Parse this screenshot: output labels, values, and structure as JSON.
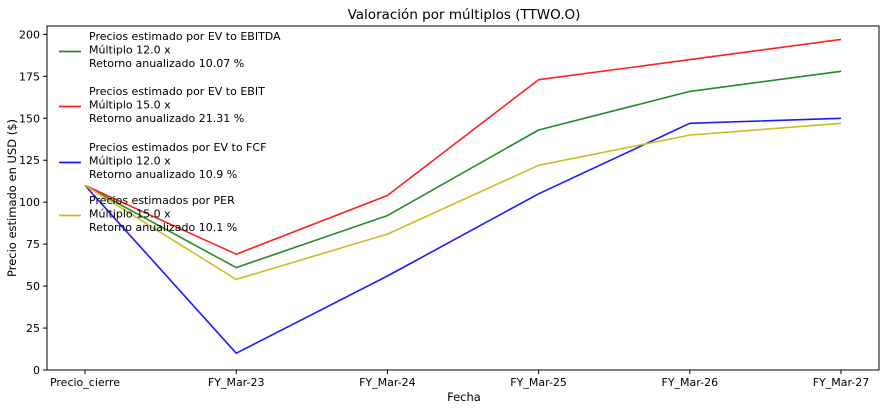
{
  "chart_data": {
    "type": "line",
    "title": "Valoración por múltiplos (TTWO.O)",
    "xlabel": "Fecha",
    "ylabel": "Precio estimado en USD ($)",
    "categories": [
      "Precio_cierre",
      "FY_Mar-23",
      "FY_Mar-24",
      "FY_Mar-25",
      "FY_Mar-26",
      "FY_Mar-27"
    ],
    "ylim": [
      0,
      205
    ],
    "yticks": [
      0,
      25,
      50,
      75,
      100,
      125,
      150,
      175,
      200
    ],
    "grid": false,
    "legend_position": "top-left",
    "series": [
      {
        "name": "Precios estimado por EV to EBITDA",
        "legend_lines": [
          "Precios estimado por EV to EBITDA",
          "Múltiplo 12.0 x",
          "Retorno anualizado 10.07 %"
        ],
        "color": "#228b22",
        "values": [
          110,
          61,
          92,
          143,
          166,
          178
        ]
      },
      {
        "name": "Precios estimado por EV to EBIT",
        "legend_lines": [
          "Precios estimado por EV to EBIT",
          "Múltiplo 15.0 x",
          "Retorno anualizado 21.31 %"
        ],
        "color": "#ff2020",
        "values": [
          110,
          69,
          104,
          173,
          185,
          197
        ]
      },
      {
        "name": "Precios estimados por EV to FCF",
        "legend_lines": [
          "Precios estimados por EV to FCF",
          "Múltiplo 12.0 x",
          "Retorno anualizado 10.9 %"
        ],
        "color": "#1a1aff",
        "values": [
          110,
          10,
          56,
          105,
          147,
          150
        ]
      },
      {
        "name": "Precios estimados por PER",
        "legend_lines": [
          "Precios estimados por PER",
          "Múltiplo 15.0 x",
          "Retorno anualizado 10.1 %"
        ],
        "color": "#c8c020",
        "values": [
          110,
          54,
          81,
          122,
          140,
          147
        ]
      }
    ]
  }
}
